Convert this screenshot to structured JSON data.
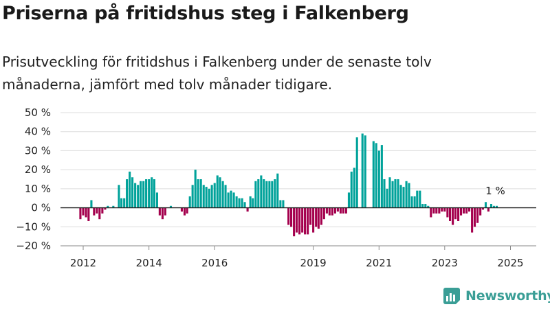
{
  "header": {
    "title": "Priserna på fritidshus steg i Falkenberg",
    "subtitle_line1": "Prisutveckling för fritidshus i Falkenberg under de senaste tolv",
    "subtitle_line2": "månaderna, jämfört med tolv månader tidigare."
  },
  "brand": {
    "name": "Newsworthy",
    "color": "#3a9e96"
  },
  "colors": {
    "positive": "#00a29a",
    "negative": "#a4004d",
    "grid": "#dddddd",
    "zero_line": "#222222"
  },
  "chart_data": {
    "type": "bar",
    "title": "Priserna på fritidshus steg i Falkenberg",
    "subtitle": "Prisutveckling för fritidshus i Falkenberg under de senaste tolv månaderna, jämfört med tolv månader tidigare.",
    "xlabel": "",
    "ylabel": "",
    "ylim": [
      -20,
      50
    ],
    "yticks": [
      -20,
      -10,
      0,
      10,
      20,
      30,
      40,
      50
    ],
    "ytick_labels": [
      "−20 %",
      "−10 %",
      "0 %",
      "10 %",
      "20 %",
      "30 %",
      "40 %",
      "50 %"
    ],
    "xticks": [
      "2012-01-01",
      "2014-01-01",
      "2016-01-01",
      "2019-01-01",
      "2021-01-01",
      "2023-01-01",
      "2025-01-01"
    ],
    "xtick_labels": [
      "2012",
      "2014",
      "2016",
      "2019",
      "2021",
      "2023",
      "2025"
    ],
    "grid": true,
    "annotation": {
      "date": "2024-08-01",
      "value": 1,
      "label": "1 %"
    },
    "series": [
      {
        "frequency": "monthly",
        "dates": [
          "2011-12-01",
          "2012-01-01",
          "2012-02-01",
          "2012-03-01",
          "2012-04-01",
          "2012-05-01",
          "2012-06-01",
          "2012-07-01",
          "2012-08-01",
          "2012-09-01",
          "2012-10-01",
          "2012-11-01",
          "2012-12-01",
          "2013-01-01",
          "2013-02-01",
          "2013-03-01",
          "2013-04-01",
          "2013-05-01",
          "2013-06-01",
          "2013-07-01",
          "2013-08-01",
          "2013-09-01",
          "2013-10-01",
          "2013-11-01",
          "2013-12-01",
          "2014-01-01",
          "2014-02-01",
          "2014-03-01",
          "2014-04-01",
          "2014-05-01",
          "2014-06-01",
          "2014-07-01",
          "2014-08-01",
          "2014-09-01",
          "2014-10-01",
          "2014-11-01",
          "2014-12-01",
          "2015-01-01",
          "2015-02-01",
          "2015-03-01",
          "2015-04-01",
          "2015-05-01",
          "2015-06-01",
          "2015-07-01",
          "2015-08-01",
          "2015-09-01",
          "2015-10-01",
          "2015-11-01",
          "2015-12-01",
          "2016-01-01",
          "2016-02-01",
          "2016-03-01",
          "2016-04-01",
          "2016-05-01",
          "2016-06-01",
          "2016-07-01",
          "2016-08-01",
          "2016-09-01",
          "2016-10-01",
          "2016-11-01",
          "2016-12-01",
          "2017-01-01",
          "2017-02-01",
          "2017-03-01",
          "2017-04-01",
          "2017-05-01",
          "2017-06-01",
          "2017-07-01",
          "2017-08-01",
          "2017-09-01",
          "2017-10-01",
          "2017-11-01",
          "2017-12-01",
          "2018-01-01",
          "2018-02-01",
          "2018-03-01",
          "2018-04-01",
          "2018-05-01",
          "2018-06-01",
          "2018-07-01",
          "2018-08-01",
          "2018-09-01",
          "2018-10-01",
          "2018-11-01",
          "2018-12-01",
          "2019-01-01",
          "2019-02-01",
          "2019-03-01",
          "2019-04-01",
          "2019-05-01",
          "2019-06-01",
          "2019-07-01",
          "2019-08-01",
          "2019-09-01",
          "2019-10-01",
          "2019-11-01",
          "2019-12-01",
          "2020-01-01",
          "2020-02-01",
          "2020-03-01",
          "2020-04-01",
          "2020-05-01",
          "2020-06-01",
          "2020-07-01",
          "2020-08-01",
          "2020-09-01",
          "2020-10-01",
          "2020-11-01",
          "2020-12-01",
          "2021-01-01",
          "2021-02-01",
          "2021-03-01",
          "2021-04-01",
          "2021-05-01",
          "2021-06-01",
          "2021-07-01",
          "2021-08-01",
          "2021-09-01",
          "2021-10-01",
          "2021-11-01",
          "2021-12-01",
          "2022-01-01",
          "2022-02-01",
          "2022-03-01",
          "2022-04-01",
          "2022-05-01",
          "2022-06-01",
          "2022-07-01",
          "2022-08-01",
          "2022-09-01",
          "2022-10-01",
          "2022-11-01",
          "2022-12-01",
          "2023-01-01",
          "2023-02-01",
          "2023-03-01",
          "2023-04-01",
          "2023-05-01",
          "2023-06-01",
          "2023-07-01",
          "2023-08-01",
          "2023-09-01",
          "2023-10-01",
          "2023-11-01",
          "2023-12-01",
          "2024-01-01",
          "2024-02-01",
          "2024-03-01",
          "2024-04-01",
          "2024-05-01",
          "2024-06-01",
          "2024-07-01",
          "2024-08-01"
        ],
        "values": [
          -6,
          -4,
          -5,
          -7,
          4,
          -4,
          -3,
          -6,
          -3,
          -1,
          1,
          0,
          1,
          0,
          12,
          5,
          5,
          15,
          19,
          16,
          13,
          12,
          14,
          14,
          15,
          15,
          16,
          15,
          8,
          -4,
          -6,
          -4,
          null,
          1,
          0,
          null,
          null,
          -2,
          -4,
          -3,
          6,
          12,
          20,
          15,
          15,
          12,
          11,
          10,
          12,
          13,
          17,
          16,
          14,
          12,
          8,
          9,
          8,
          6,
          5,
          5,
          3,
          -2,
          6,
          5,
          14,
          15,
          17,
          15,
          14,
          14,
          14,
          15,
          18,
          4,
          4,
          null,
          -9,
          -10,
          -15,
          -13,
          -14,
          -13,
          -14,
          -14,
          -9,
          -13,
          -10,
          -11,
          -9,
          -6,
          -3,
          -4,
          -4,
          -3,
          -2,
          -3,
          -3,
          -3,
          8,
          19,
          21,
          37,
          null,
          39,
          38,
          null,
          null,
          35,
          34,
          30,
          33,
          15,
          10,
          16,
          14,
          15,
          15,
          12,
          11,
          14,
          13,
          6,
          6,
          9,
          9,
          2,
          2,
          1,
          -5,
          -3,
          -3,
          -3,
          -2,
          -2,
          -5,
          -7,
          -9,
          -6,
          -7,
          -4,
          -3,
          -3,
          -2,
          -13,
          -10,
          -8,
          -4,
          -1,
          3,
          -2,
          2,
          1,
          1
        ]
      }
    ]
  }
}
